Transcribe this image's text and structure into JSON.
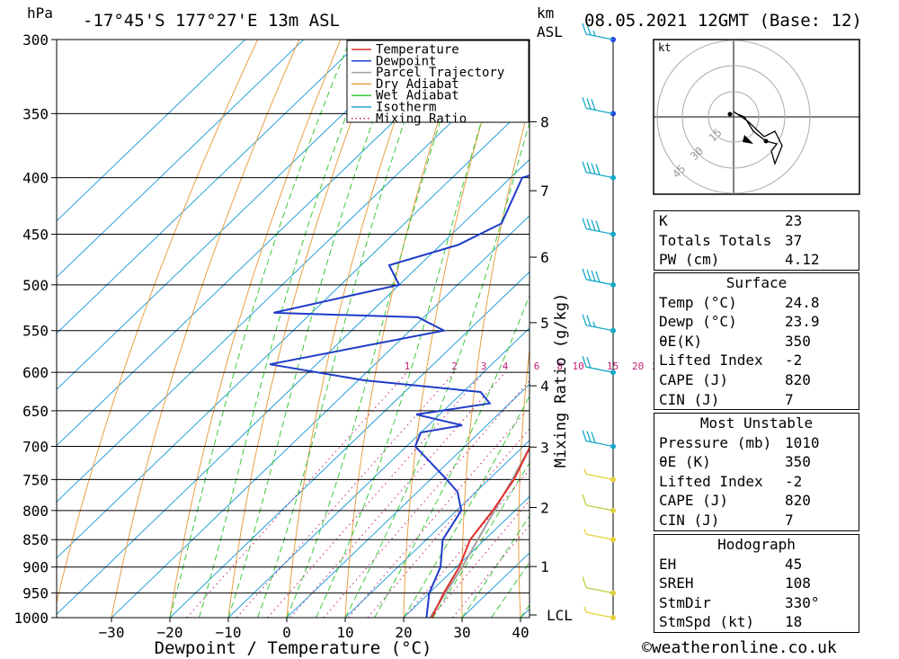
{
  "header": {
    "hpa_label": "hPa",
    "location": "-17°45'S 177°27'E 13m ASL",
    "km_label": "km",
    "asl_label": "ASL",
    "datetime": "08.05.2021 12GMT (Base: 12)"
  },
  "chart_data": {
    "type": "line",
    "subtype": "skew-T log-P sounding",
    "xlabel": "Dewpoint / Temperature (°C)",
    "ylabel": "hPa",
    "right_axis_label": "Mixing Ratio (g/kg)",
    "x_ticks": [
      -30,
      -20,
      -10,
      0,
      10,
      20,
      30,
      40
    ],
    "pressure_levels": [
      300,
      350,
      400,
      450,
      500,
      550,
      600,
      650,
      700,
      750,
      800,
      850,
      900,
      950,
      1000
    ],
    "height_ticks_km": [
      1,
      2,
      3,
      4,
      5,
      6,
      7,
      8
    ],
    "lcl_label": "LCL",
    "mixing_ratio_labels": [
      "1",
      "2",
      "3",
      "4",
      "6",
      "8",
      "10",
      "15",
      "20",
      "25"
    ],
    "series": [
      {
        "name": "Temperature",
        "color": "#e0302c",
        "points": [
          [
            1000,
            24.8
          ],
          [
            950,
            22.5
          ],
          [
            900,
            20.5
          ],
          [
            850,
            17.5
          ],
          [
            800,
            16.2
          ],
          [
            750,
            14.3
          ],
          [
            700,
            11.2
          ],
          [
            650,
            6.8
          ],
          [
            620,
            4.6
          ],
          [
            600,
            4.0
          ],
          [
            580,
            1.8
          ],
          [
            560,
            -0.4
          ],
          [
            540,
            -2.2
          ],
          [
            530,
            -2.4
          ],
          [
            520,
            -3.0
          ],
          [
            500,
            -4.5
          ],
          [
            470,
            -6.6
          ],
          [
            450,
            -8.6
          ],
          [
            430,
            -10.5
          ],
          [
            400,
            -14.5
          ],
          [
            380,
            -18.0
          ],
          [
            365,
            -21.5
          ],
          [
            310,
            -34.5
          ],
          [
            300,
            -37.0
          ]
        ]
      },
      {
        "name": "Dewpoint",
        "color": "#1f3cc8",
        "points": [
          [
            1000,
            23.9
          ],
          [
            950,
            20.0
          ],
          [
            900,
            17.3
          ],
          [
            850,
            12.8
          ],
          [
            800,
            10.8
          ],
          [
            770,
            6.9
          ],
          [
            750,
            2.8
          ],
          [
            700,
            -8.5
          ],
          [
            680,
            -10.0
          ],
          [
            670,
            -4.2
          ],
          [
            655,
            -14.0
          ],
          [
            640,
            -3.4
          ],
          [
            625,
            -7.0
          ],
          [
            610,
            -29.0
          ],
          [
            590,
            -48.0
          ],
          [
            550,
            -24.2
          ],
          [
            535,
            -31.0
          ],
          [
            530,
            -56.5
          ],
          [
            500,
            -40.0
          ],
          [
            480,
            -45.2
          ],
          [
            460,
            -37.0
          ],
          [
            440,
            -33.4
          ],
          [
            400,
            -38.0
          ],
          [
            390,
            -33.0
          ],
          [
            360,
            -0.5
          ],
          [
            345,
            -7.0
          ],
          [
            300,
            -12.0
          ]
        ]
      },
      {
        "name": "Parcel Trajectory",
        "color": "#a0a0a0",
        "points": [
          [
            1000,
            24.5
          ],
          [
            950,
            22.8
          ],
          [
            900,
            21.0
          ],
          [
            850,
            18.8
          ],
          [
            800,
            16.5
          ],
          [
            750,
            14.0
          ],
          [
            700,
            11.2
          ],
          [
            650,
            8.1
          ],
          [
            600,
            4.8
          ],
          [
            550,
            1.1
          ],
          [
            500,
            -3.0
          ],
          [
            450,
            -7.7
          ],
          [
            400,
            -13.0
          ],
          [
            370,
            -16.5
          ]
        ]
      }
    ],
    "background_lines": [
      "Dry Adiabat",
      "Wet Adiabat",
      "Isotherm",
      "Mixing Ratio"
    ],
    "background_colors": {
      "dry_adiabat": "#e8a045",
      "wet_adiabat": "#3cc83c",
      "isotherm": "#2aa0dc",
      "mixing_ratio": "#c0207a"
    },
    "wind_barbs": [
      {
        "p": 1000,
        "kt": 5
      },
      {
        "p": 950,
        "kt": 10
      },
      {
        "p": 850,
        "kt": 5
      },
      {
        "p": 800,
        "kt": 10
      },
      {
        "p": 750,
        "kt": 5
      },
      {
        "p": 700,
        "kt": 30
      },
      {
        "p": 600,
        "kt": 20
      },
      {
        "p": 550,
        "kt": 25
      },
      {
        "p": 500,
        "kt": 40
      },
      {
        "p": 450,
        "kt": 40
      },
      {
        "p": 400,
        "kt": 40
      },
      {
        "p": 350,
        "kt": 30
      },
      {
        "p": 300,
        "kt": 25
      }
    ],
    "hodograph": {
      "unit_label": "kt",
      "ring_labels": [
        "15",
        "30",
        "45"
      ]
    }
  },
  "legend": [
    "Temperature",
    "Dewpoint",
    "Parcel Trajectory",
    "Dry Adiabat",
    "Wet Adiabat",
    "Isotherm",
    "Mixing Ratio"
  ],
  "indices": [
    {
      "label": "K",
      "value": "23"
    },
    {
      "label": "Totals Totals",
      "value": "37"
    },
    {
      "label": "PW (cm)",
      "value": "4.12"
    }
  ],
  "surface": {
    "title": "Surface",
    "rows": [
      {
        "label": "Temp (°C)",
        "value": "24.8"
      },
      {
        "label": "Dewp (°C)",
        "value": "23.9"
      },
      {
        "label": "θE(K)",
        "value": "350"
      },
      {
        "label": "Lifted Index",
        "value": "-2"
      },
      {
        "label": "CAPE (J)",
        "value": "820"
      },
      {
        "label": "CIN (J)",
        "value": "7"
      }
    ]
  },
  "most_unstable": {
    "title": "Most Unstable",
    "rows": [
      {
        "label": "Pressure (mb)",
        "value": "1010"
      },
      {
        "label": "θE (K)",
        "value": "350"
      },
      {
        "label": "Lifted Index",
        "value": "-2"
      },
      {
        "label": "CAPE (J)",
        "value": "820"
      },
      {
        "label": "CIN (J)",
        "value": "7"
      }
    ]
  },
  "hodograph_table": {
    "title": "Hodograph",
    "rows": [
      {
        "label": "EH",
        "value": "45"
      },
      {
        "label": "SREH",
        "value": "108"
      },
      {
        "label": "StmDir",
        "value": "330°"
      },
      {
        "label": "StmSpd (kt)",
        "value": "18"
      }
    ]
  },
  "footer": "©weatheronline.co.uk"
}
